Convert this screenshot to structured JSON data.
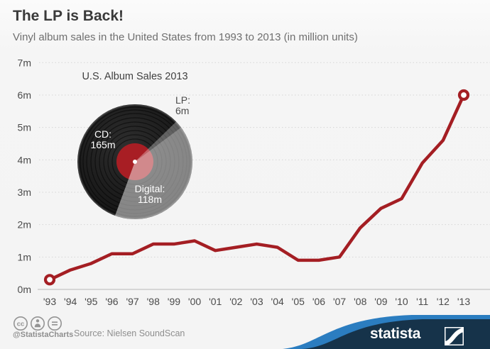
{
  "header": {
    "title": "The LP is Back!",
    "subtitle": "Vinyl album sales in the United States from 1993 to 2013 (in million units)"
  },
  "chart_data": [
    {
      "type": "line",
      "categories": [
        "'93",
        "'94",
        "'95",
        "'96",
        "'97",
        "'98",
        "'99",
        "'00",
        "'01",
        "'02",
        "'03",
        "'04",
        "'05",
        "'06",
        "'07",
        "'08",
        "'09",
        "'10",
        "'11",
        "'12",
        "'13"
      ],
      "values": [
        0.3,
        0.6,
        0.8,
        1.1,
        1.1,
        1.4,
        1.4,
        1.5,
        1.2,
        1.3,
        1.4,
        1.3,
        0.9,
        0.9,
        1.0,
        1.9,
        2.5,
        2.8,
        3.9,
        4.6,
        6.0
      ],
      "xlabel": "",
      "ylabel": "million units",
      "ylim": [
        0,
        7
      ],
      "ytick_labels": [
        "0m",
        "1m",
        "2m",
        "3m",
        "4m",
        "5m",
        "6m",
        "7m"
      ],
      "grid": "horizontal-dotted",
      "legend": "none",
      "markers": "first-and-last-point",
      "line_color": "#a41e23"
    },
    {
      "type": "pie",
      "title": "U.S. Album Sales 2013",
      "style": "vinyl-record",
      "start_angle_deg": 45.8,
      "slices": [
        {
          "name": "CD",
          "label": "CD:",
          "value": 165,
          "value_label": "165m"
        },
        {
          "name": "LP",
          "label": "LP:",
          "value": 6,
          "value_label": "6m"
        },
        {
          "name": "Digital",
          "label": "Digital:",
          "value": 118,
          "value_label": "118m"
        }
      ]
    }
  ],
  "footer": {
    "license_icons": [
      "cc-icon",
      "attribution-person-icon",
      "equals-icon"
    ],
    "handle": "@StatistaCharts",
    "source": "Source: Nielsen SoundScan",
    "brand": "statista"
  },
  "colors": {
    "line_red": "#a41e23",
    "record_label_red": "#a81e24",
    "brand_navy": "#16334a",
    "brand_blue": "#2b7dc0",
    "grid_gray": "#d5d5d5",
    "axis_gray": "#c3c3c3",
    "footer_gray": "#8e8e8e"
  }
}
